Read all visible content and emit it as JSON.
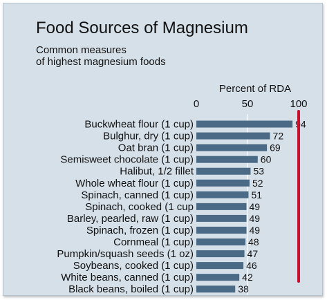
{
  "chart_data": {
    "type": "bar",
    "orientation": "horizontal",
    "title": "Food Sources of Magnesium",
    "subtitle": [
      "Common measures",
      "of highest magnesium foods"
    ],
    "xlabel": "Percent of RDA",
    "xlim": [
      0,
      100
    ],
    "xticks": [
      "0",
      "50",
      "100"
    ],
    "grid": true,
    "reference_line": {
      "value": 100,
      "color": "#c8102e"
    },
    "bar_color": "#4a6a86",
    "categories": [
      "Buckwheat flour (1 cup)",
      "Bulghur, dry (1 cup)",
      "Oat bran (1 cup)",
      "Semisweet chocolate (1 cup)",
      "Halibut, 1/2 fillet",
      "Whole wheat flour (1 cup)",
      "Spinach, canned (1 cup)",
      "Spinach, cooked (1 cup",
      "Barley, pearled, raw (1 cup)",
      "Spinach, frozen (1 cup)",
      "Cornmeal (1 cup)",
      "Pumpkin/squash seeds (1 oz)",
      "Soybeans, cooked (1 cup)",
      "White beans, canned (1 cup)",
      "Black beans, boiled (1 cup)"
    ],
    "values": [
      94,
      72,
      69,
      60,
      53,
      52,
      51,
      49,
      49,
      49,
      48,
      47,
      46,
      42,
      38
    ]
  }
}
